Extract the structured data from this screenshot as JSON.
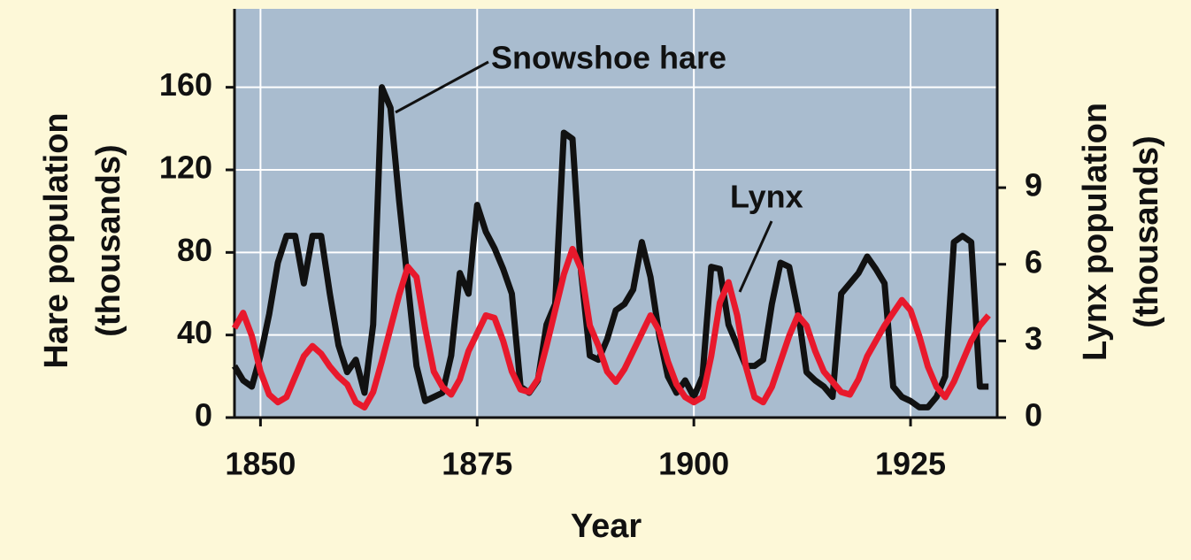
{
  "chart_data": {
    "type": "line",
    "xlabel": "Year",
    "ylabel": [
      "Hare population",
      "(thousands)"
    ],
    "y2label": [
      "Lynx population",
      "(thousands)"
    ],
    "x": [
      1847,
      1848,
      1849,
      1850,
      1851,
      1852,
      1853,
      1854,
      1855,
      1856,
      1857,
      1858,
      1859,
      1860,
      1861,
      1862,
      1863,
      1864,
      1865,
      1866,
      1867,
      1868,
      1869,
      1870,
      1871,
      1872,
      1873,
      1874,
      1875,
      1876,
      1877,
      1878,
      1879,
      1880,
      1881,
      1882,
      1883,
      1884,
      1885,
      1886,
      1887,
      1888,
      1889,
      1890,
      1891,
      1892,
      1893,
      1894,
      1895,
      1896,
      1897,
      1898,
      1899,
      1900,
      1901,
      1902,
      1903,
      1904,
      1905,
      1906,
      1907,
      1908,
      1909,
      1910,
      1911,
      1912,
      1913,
      1914,
      1915,
      1916,
      1917,
      1918,
      1919,
      1920,
      1921,
      1922,
      1923,
      1924,
      1925,
      1926,
      1927,
      1928,
      1929,
      1930,
      1931,
      1932,
      1933,
      1934
    ],
    "series": [
      {
        "name": "Snowshoe hare",
        "color": "#111111",
        "values": [
          25,
          18,
          15,
          30,
          50,
          75,
          88,
          88,
          65,
          88,
          88,
          60,
          35,
          22,
          28,
          12,
          45,
          160,
          150,
          105,
          65,
          25,
          8,
          10,
          12,
          30,
          70,
          60,
          103,
          90,
          82,
          72,
          60,
          15,
          12,
          18,
          45,
          55,
          138,
          135,
          70,
          30,
          28,
          38,
          52,
          55,
          62,
          85,
          68,
          40,
          20,
          12,
          18,
          10,
          20,
          73,
          72,
          45,
          35,
          25,
          25,
          28,
          55,
          75,
          73,
          52,
          22,
          18,
          15,
          10,
          60,
          65,
          70,
          78,
          72,
          65,
          15,
          10,
          8,
          5,
          5,
          10,
          20,
          85,
          88,
          85,
          15,
          15
        ]
      },
      {
        "name": "Lynx",
        "color": "#e8192c",
        "axis": "y2",
        "values": [
          3.5,
          4.1,
          3.2,
          1.8,
          0.9,
          0.6,
          0.8,
          1.6,
          2.4,
          2.8,
          2.5,
          2.0,
          1.6,
          1.3,
          0.6,
          0.4,
          1.0,
          2.2,
          3.5,
          4.8,
          5.9,
          5.5,
          3.5,
          1.8,
          1.2,
          0.9,
          1.5,
          2.6,
          3.3,
          4.0,
          3.9,
          3.0,
          1.8,
          1.1,
          1.0,
          1.5,
          2.8,
          4.2,
          5.6,
          6.6,
          5.8,
          3.6,
          2.8,
          1.8,
          1.4,
          1.9,
          2.6,
          3.3,
          4.0,
          3.4,
          2.2,
          1.3,
          0.8,
          0.6,
          0.8,
          2.4,
          4.5,
          5.3,
          4.0,
          2.0,
          0.8,
          0.6,
          1.2,
          2.2,
          3.2,
          4.0,
          3.6,
          2.6,
          1.8,
          1.4,
          1.0,
          0.9,
          1.5,
          2.4,
          3.0,
          3.6,
          4.1,
          4.6,
          4.2,
          3.2,
          2.0,
          1.2,
          0.8,
          1.4,
          2.2,
          3.0,
          3.6,
          4.0
        ]
      }
    ],
    "xlim": [
      1847,
      1935
    ],
    "xticks": [
      1850,
      1875,
      1900,
      1925
    ],
    "ylim": [
      0,
      198
    ],
    "yticks": [
      0,
      40,
      80,
      120,
      160
    ],
    "y2lim": [
      0,
      16
    ],
    "y2ticks": [
      0,
      3,
      6,
      9
    ],
    "grid": true
  }
}
